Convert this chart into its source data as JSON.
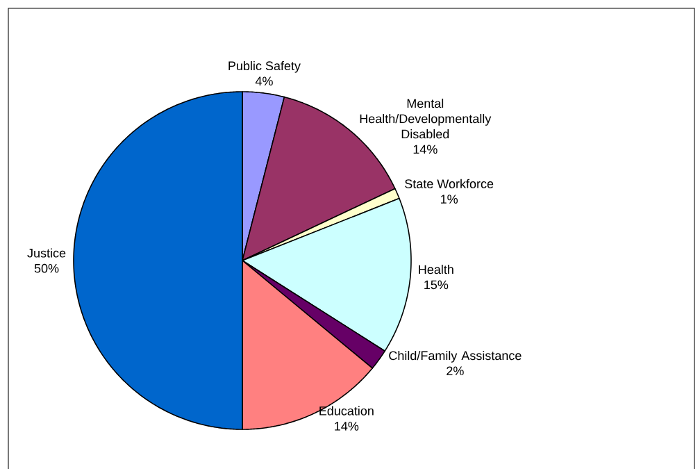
{
  "chart_data": {
    "type": "pie",
    "categories": [
      "Public Safety",
      "Mental Health/Developmentally Disabled",
      "State Workforce",
      "Health",
      "Child/Family Assistance",
      "Education",
      "Justice"
    ],
    "values": [
      4,
      14,
      1,
      15,
      2,
      14,
      50
    ],
    "value_labels": [
      "4%",
      "14%",
      "1%",
      "15%",
      "2%",
      "14%",
      "50%"
    ],
    "colors": [
      "#9999ff",
      "#993366",
      "#ffffcc",
      "#ccffff",
      "#660066",
      "#ff8080",
      "#0066cc"
    ]
  }
}
